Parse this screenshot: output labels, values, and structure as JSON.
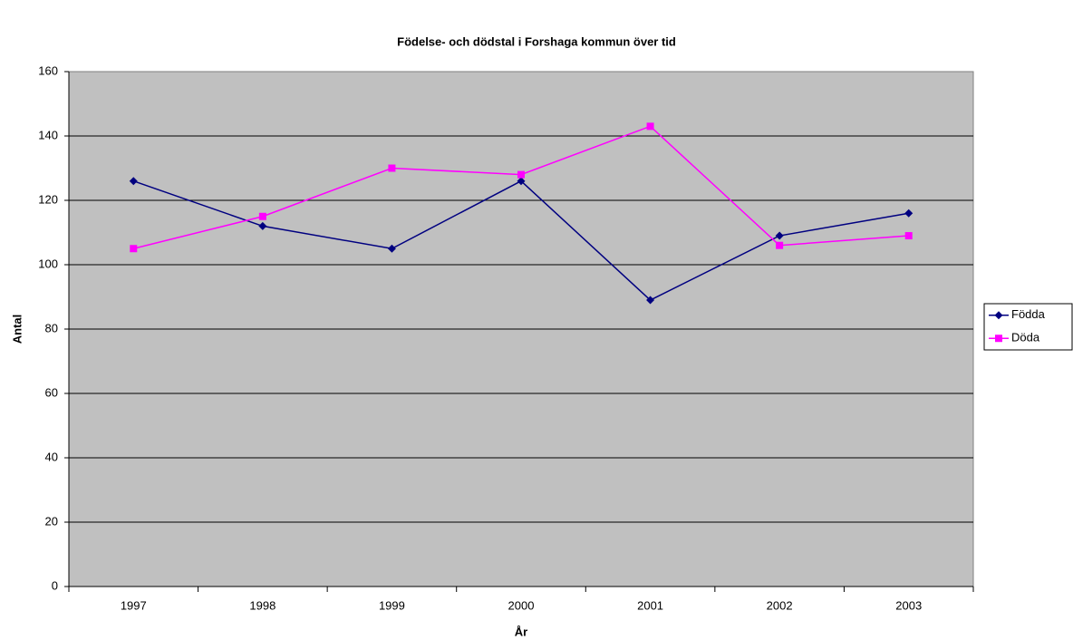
{
  "chart_data": {
    "type": "line",
    "title": "Födelse- och dödstal i Forshaga kommun över tid",
    "x_label": "År",
    "y_label": "Antal",
    "categories": [
      "1997",
      "1998",
      "1999",
      "2000",
      "2001",
      "2002",
      "2003"
    ],
    "series": [
      {
        "name": "Födda",
        "color": "#000080",
        "marker": "diamond",
        "values": [
          126,
          112,
          105,
          126,
          89,
          109,
          116
        ]
      },
      {
        "name": "Döda",
        "color": "#ff00ff",
        "marker": "square",
        "values": [
          105,
          115,
          130,
          128,
          143,
          106,
          109
        ]
      }
    ],
    "ylim": [
      0,
      160
    ],
    "yticks": [
      0,
      20,
      40,
      60,
      80,
      100,
      120,
      140,
      160
    ],
    "grid": true,
    "legend": "right"
  }
}
